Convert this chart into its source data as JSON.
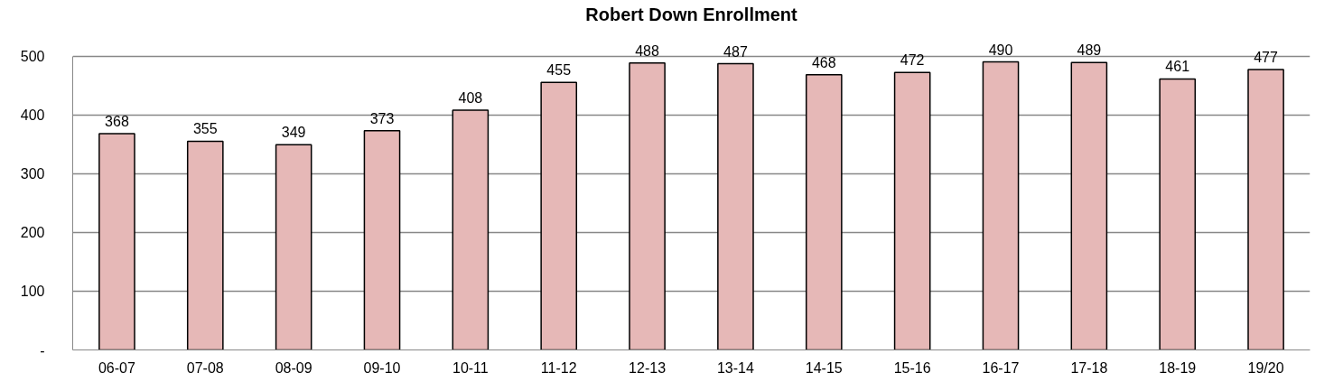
{
  "chart_data": {
    "type": "bar",
    "title": "Robert Down Enrollment",
    "categories": [
      "06-07",
      "07-08",
      "08-09",
      "09-10",
      "10-11",
      "11-12",
      "12-13",
      "13-14",
      "14-15",
      "15-16",
      "16-17",
      "17-18",
      "18-19",
      "19/20"
    ],
    "values": [
      368,
      355,
      349,
      373,
      408,
      455,
      488,
      487,
      468,
      472,
      490,
      489,
      461,
      477
    ],
    "color": "#e6b8b7",
    "ylim": [
      0,
      500
    ],
    "yticks": [
      {
        "value": 0,
        "label": "-"
      },
      100,
      200,
      300,
      400,
      500
    ],
    "grid": "y",
    "data_labels": true
  }
}
